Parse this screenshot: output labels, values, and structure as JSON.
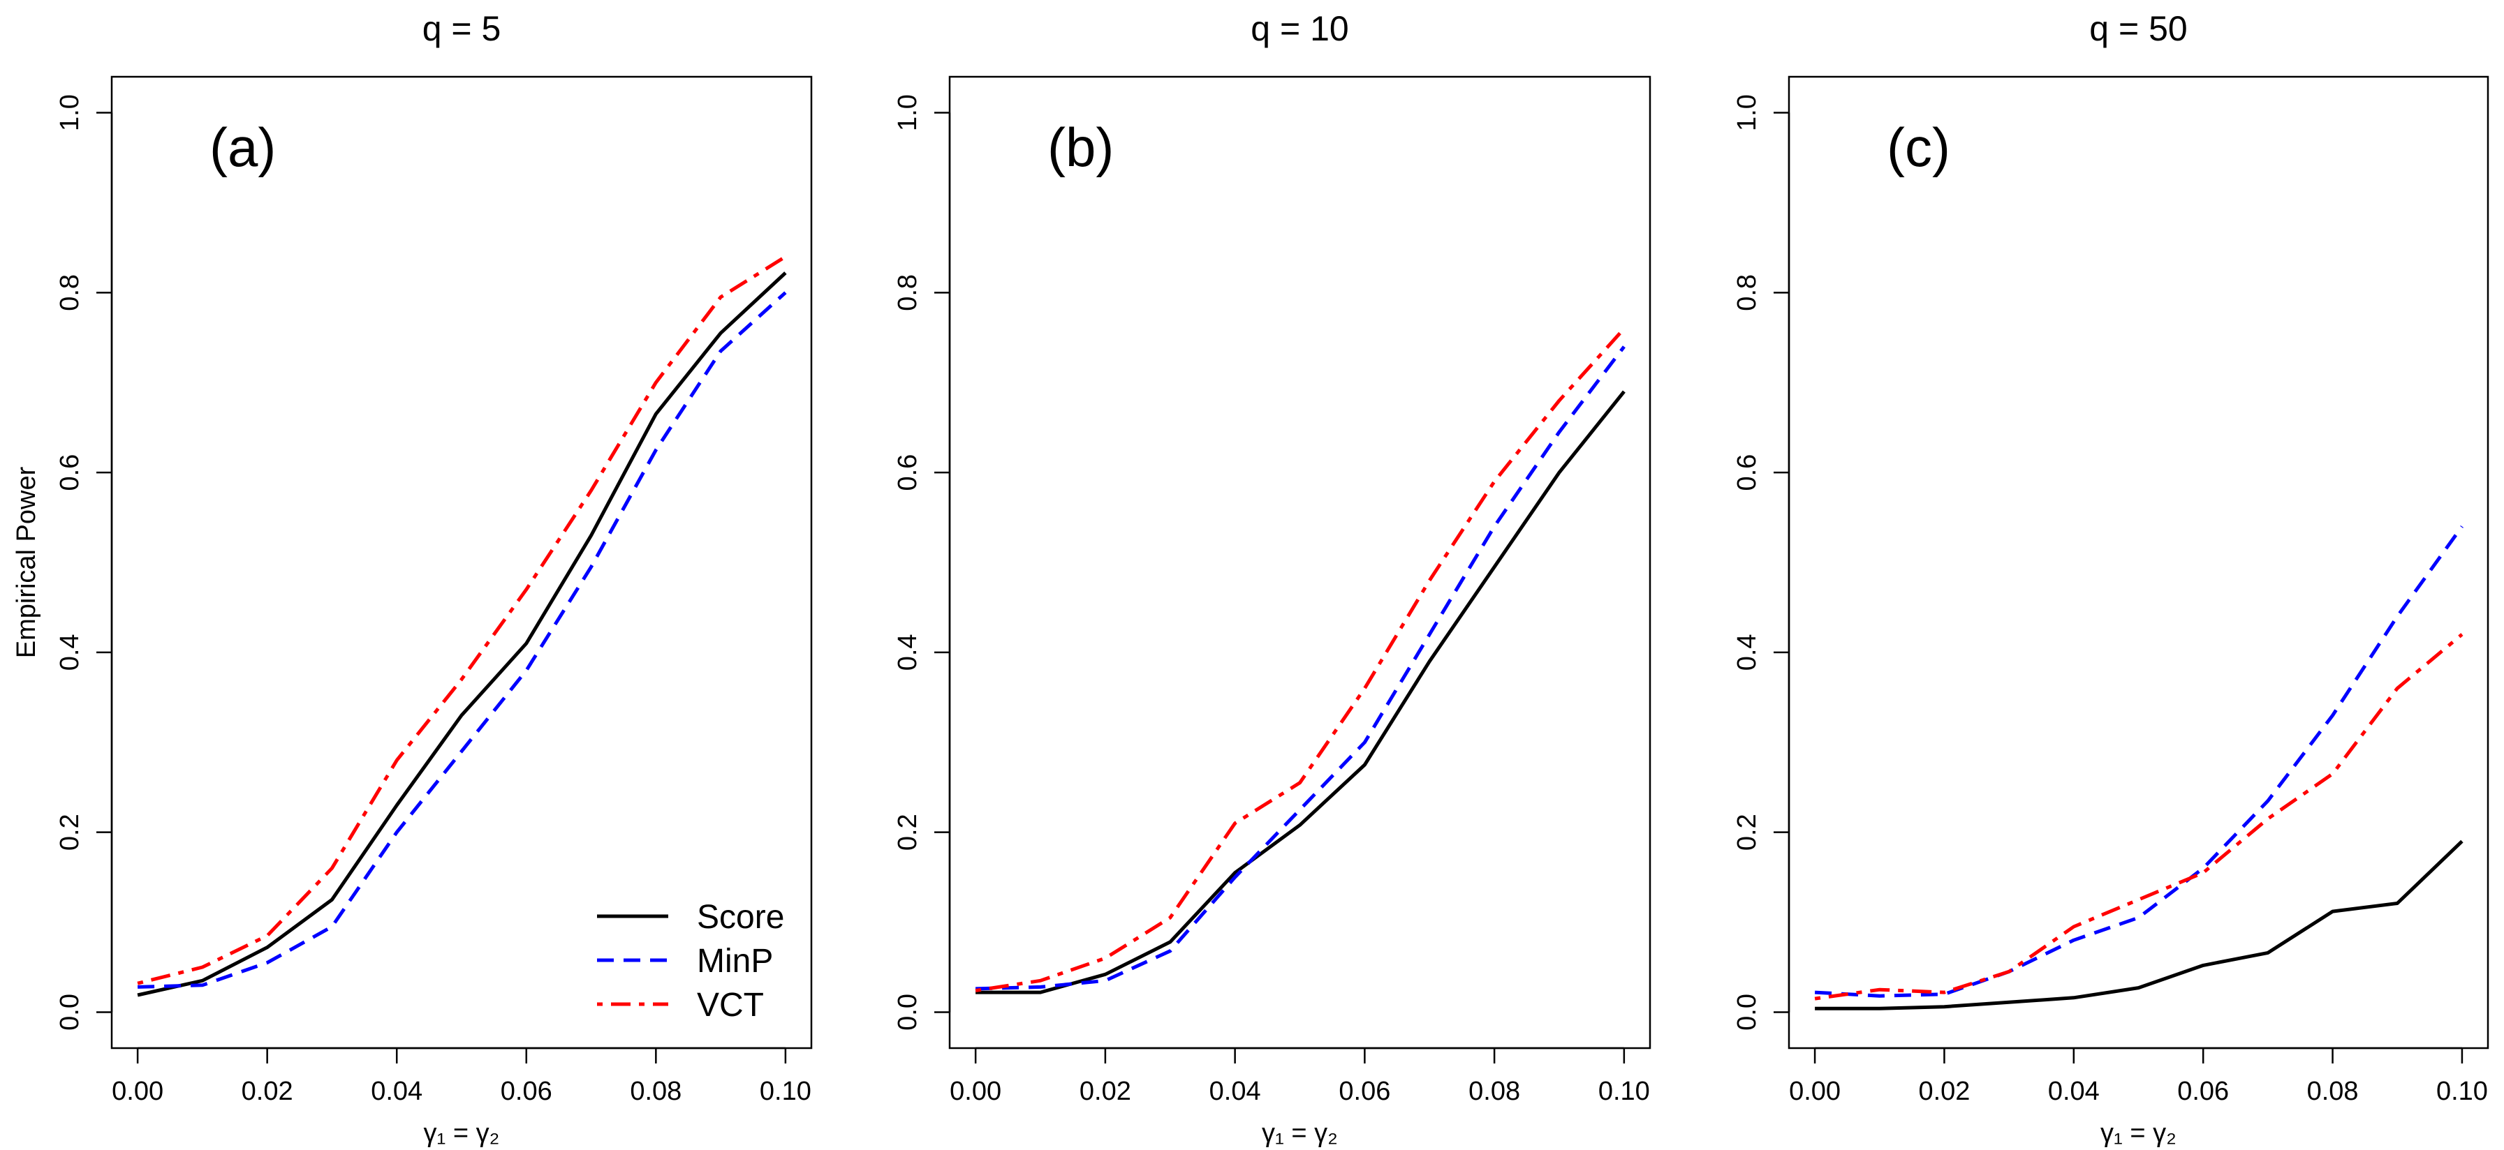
{
  "chart_data": [
    {
      "type": "line",
      "title": "q = 5",
      "panel_label": "(a)",
      "xlabel": "γ₁ = γ₂",
      "ylabel": "Empirical Power",
      "xlim": [
        0,
        0.1
      ],
      "ylim": [
        0,
        1
      ],
      "xticks": [
        "0.00",
        "0.02",
        "0.04",
        "0.06",
        "0.08",
        "0.10"
      ],
      "yticks": [
        "0.0",
        "0.2",
        "0.4",
        "0.6",
        "0.8",
        "1.0"
      ],
      "x": [
        0,
        0.01,
        0.02,
        0.03,
        0.04,
        0.05,
        0.06,
        0.07,
        0.08,
        0.09,
        0.1
      ],
      "legend": "bottom-right",
      "series": [
        {
          "name": "Score",
          "color": "#000000",
          "style": "solid",
          "values": [
            0.019,
            0.035,
            0.072,
            0.125,
            0.23,
            0.33,
            0.41,
            0.53,
            0.665,
            0.755,
            0.822
          ]
        },
        {
          "name": "MinP",
          "color": "#0000ff",
          "style": "dashed",
          "values": [
            0.028,
            0.03,
            0.055,
            0.095,
            0.2,
            0.29,
            0.38,
            0.495,
            0.625,
            0.735,
            0.8
          ]
        },
        {
          "name": "VCT",
          "color": "#ff0000",
          "style": "dotdash",
          "values": [
            0.032,
            0.05,
            0.085,
            0.16,
            0.28,
            0.37,
            0.47,
            0.58,
            0.7,
            0.795,
            0.84
          ]
        }
      ]
    },
    {
      "type": "line",
      "title": "q = 10",
      "panel_label": "(b)",
      "xlabel": "γ₁ = γ₂",
      "ylabel": "",
      "xlim": [
        0,
        0.1
      ],
      "ylim": [
        0,
        1
      ],
      "xticks": [
        "0.00",
        "0.02",
        "0.04",
        "0.06",
        "0.08",
        "0.10"
      ],
      "yticks": [
        "0.0",
        "0.2",
        "0.4",
        "0.6",
        "0.8",
        "1.0"
      ],
      "x": [
        0,
        0.01,
        0.02,
        0.03,
        0.04,
        0.05,
        0.06,
        0.07,
        0.08,
        0.09,
        0.1
      ],
      "series": [
        {
          "name": "Score",
          "color": "#000000",
          "style": "solid",
          "values": [
            0.022,
            0.022,
            0.042,
            0.078,
            0.155,
            0.208,
            0.275,
            0.39,
            0.495,
            0.6,
            0.69
          ]
        },
        {
          "name": "MinP",
          "color": "#0000ff",
          "style": "dashed",
          "values": [
            0.026,
            0.028,
            0.035,
            0.068,
            0.15,
            0.225,
            0.3,
            0.42,
            0.54,
            0.645,
            0.74
          ]
        },
        {
          "name": "VCT",
          "color": "#ff0000",
          "style": "dotdash",
          "values": [
            0.024,
            0.035,
            0.06,
            0.105,
            0.21,
            0.255,
            0.36,
            0.48,
            0.59,
            0.68,
            0.76
          ]
        }
      ]
    },
    {
      "type": "line",
      "title": "q = 50",
      "panel_label": "(c)",
      "xlabel": "γ₁ = γ₂",
      "ylabel": "",
      "xlim": [
        0,
        0.1
      ],
      "ylim": [
        0,
        1
      ],
      "xticks": [
        "0.00",
        "0.02",
        "0.04",
        "0.06",
        "0.08",
        "0.10"
      ],
      "yticks": [
        "0.0",
        "0.2",
        "0.4",
        "0.6",
        "0.8",
        "1.0"
      ],
      "x": [
        0,
        0.01,
        0.02,
        0.03,
        0.04,
        0.05,
        0.06,
        0.07,
        0.08,
        0.09,
        0.1
      ],
      "series": [
        {
          "name": "Score",
          "color": "#000000",
          "style": "solid",
          "values": [
            0.004,
            0.004,
            0.006,
            0.011,
            0.016,
            0.027,
            0.052,
            0.066,
            0.112,
            0.121,
            0.19
          ]
        },
        {
          "name": "MinP",
          "color": "#0000ff",
          "style": "dashed",
          "values": [
            0.022,
            0.018,
            0.02,
            0.045,
            0.08,
            0.105,
            0.16,
            0.235,
            0.33,
            0.44,
            0.54
          ]
        },
        {
          "name": "VCT",
          "color": "#ff0000",
          "style": "dotdash",
          "values": [
            0.015,
            0.025,
            0.022,
            0.045,
            0.095,
            0.125,
            0.155,
            0.215,
            0.265,
            0.36,
            0.42
          ]
        }
      ]
    }
  ],
  "legend_entries": [
    {
      "name": "Score",
      "color": "#000000",
      "style": "solid"
    },
    {
      "name": "MinP",
      "color": "#0000ff",
      "style": "dashed"
    },
    {
      "name": "VCT",
      "color": "#ff0000",
      "style": "dotdash"
    }
  ]
}
